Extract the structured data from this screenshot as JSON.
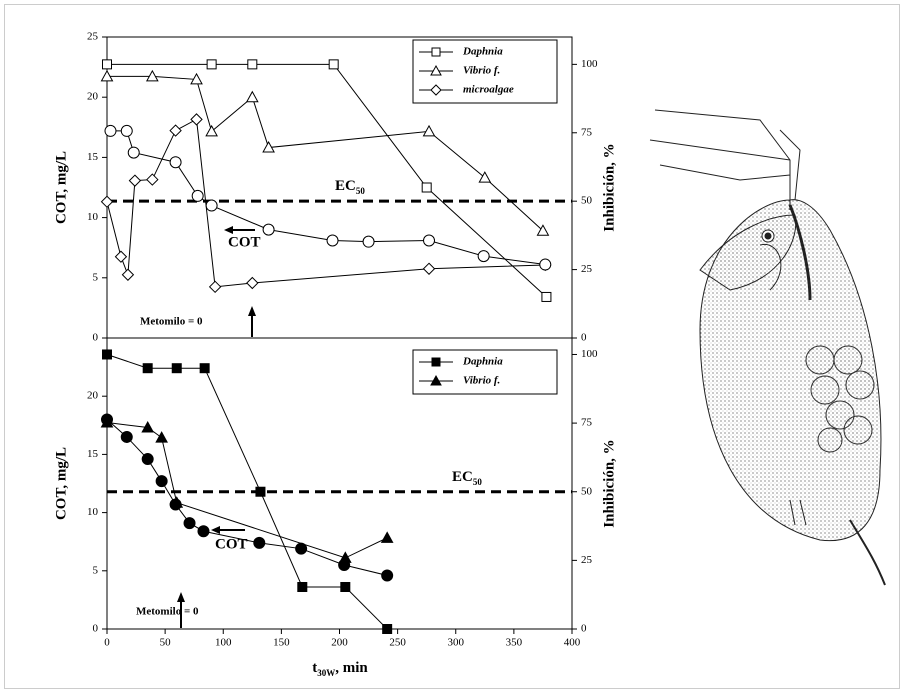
{
  "chart_data": [
    {
      "type": "line",
      "xlim": [
        0,
        400
      ],
      "ylim": [
        0,
        25
      ],
      "yticks": [
        0,
        5,
        10,
        15,
        20,
        25
      ],
      "y2lim": [
        0,
        110
      ],
      "y2ticks": [
        0,
        25,
        50,
        75,
        100
      ],
      "y_label": "COT, mg/L",
      "y2_label": "Inhibición, %",
      "ec50": {
        "value": 50,
        "text": "EC",
        "sub": "50"
      },
      "cot_label": "COT",
      "metomilo_label": "Metomilo = 0",
      "series": [
        {
          "name": "Daphnia",
          "marker": "square-open",
          "color": "#000000",
          "axis": "y2",
          "x": [
            0,
            90,
            125,
            195,
            275,
            378
          ],
          "values": [
            100,
            100,
            100,
            100,
            55,
            15
          ]
        },
        {
          "name": "Vibrio f.",
          "marker": "triangle-open",
          "color": "#000000",
          "axis": "y2",
          "x": [
            0,
            39,
            77,
            90,
            125,
            139,
            277,
            325,
            375
          ],
          "values": [
            95.6,
            95.6,
            94.5,
            75.5,
            88,
            69.6,
            75.5,
            58.6,
            39.2
          ]
        },
        {
          "name": "microalgae",
          "marker": "diamond-open",
          "color": "#000000",
          "axis": "y2",
          "x": [
            0,
            12,
            18,
            24,
            39,
            59,
            77,
            93,
            125,
            277,
            377
          ],
          "values": [
            49.8,
            29.7,
            23.1,
            57.5,
            57.9,
            75.8,
            79.9,
            18.7,
            20.1,
            25.3,
            26.7
          ]
        },
        {
          "marker": "circle-open",
          "color": "#000000",
          "x": [
            3,
            17,
            23,
            59,
            78,
            90,
            139,
            194,
            225,
            277,
            324,
            377
          ],
          "values": [
            17.2,
            17.2,
            15.4,
            14.6,
            11.8,
            11.0,
            9.0,
            8.1,
            8.0,
            8.1,
            6.8,
            6.1
          ]
        }
      ]
    },
    {
      "type": "line",
      "xlim": [
        0,
        400
      ],
      "xticks": [
        0,
        50,
        100,
        150,
        200,
        250,
        300,
        350,
        400
      ],
      "ylim": [
        0,
        25
      ],
      "yticks": [
        0,
        5,
        10,
        15,
        20
      ],
      "y2lim": [
        0,
        106
      ],
      "y2ticks": [
        0,
        25,
        50,
        75,
        100
      ],
      "x_label": {
        "text": "t",
        "sub": "30W",
        "unit": ", min"
      },
      "y_label": "COT, mg/L",
      "y2_label": "Inhibición, %",
      "ec50": {
        "value": 50,
        "text": "EC",
        "sub": "50"
      },
      "cot_label": "COT",
      "metomilo_label": "Metomilo = 0",
      "series": [
        {
          "name": "Daphnia",
          "marker": "square",
          "color": "#000000",
          "axis": "y2",
          "x": [
            0,
            35,
            60,
            84,
            132,
            168,
            205,
            241
          ],
          "values": [
            100,
            95,
            95,
            95,
            50,
            15.3,
            15.3,
            0
          ]
        },
        {
          "name": "Vibrio f.",
          "marker": "triangle",
          "color": "#000000",
          "axis": "y2",
          "x": [
            0,
            35,
            47,
            60,
            205,
            241
          ],
          "values": [
            75.2,
            73.4,
            69.7,
            46,
            25.9,
            33.2
          ]
        },
        {
          "marker": "circle",
          "color": "#000000",
          "x": [
            0,
            17,
            35,
            47,
            59,
            71,
            83,
            131,
            167,
            204,
            241
          ],
          "values": [
            18.0,
            16.5,
            14.6,
            12.7,
            10.7,
            9.1,
            8.4,
            7.4,
            6.9,
            5.5,
            4.6
          ]
        }
      ]
    }
  ]
}
